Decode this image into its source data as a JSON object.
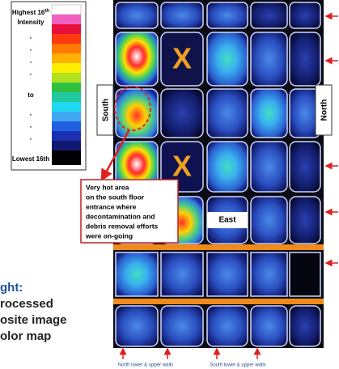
{
  "legend": {
    "highest": "Highest 16",
    "highest_sup": "th",
    "intensity": "Intensity",
    "dot": ".",
    "to": "to",
    "lowest": "Lowest 16th"
  },
  "labels": {
    "south": "South",
    "north": "North",
    "east": "East",
    "x_marks": [
      "X",
      "X"
    ]
  },
  "annotation": [
    "Very hot area",
    "on the south floor",
    "entrance where",
    "decontamination and",
    "debris removal efforts",
    "were on-going"
  ],
  "caption": [
    "ght:",
    "rocessed",
    "osite image",
    "olor map"
  ],
  "bottom_labels": [
    "North lower & upper walls",
    "South lower & upper walls"
  ]
}
